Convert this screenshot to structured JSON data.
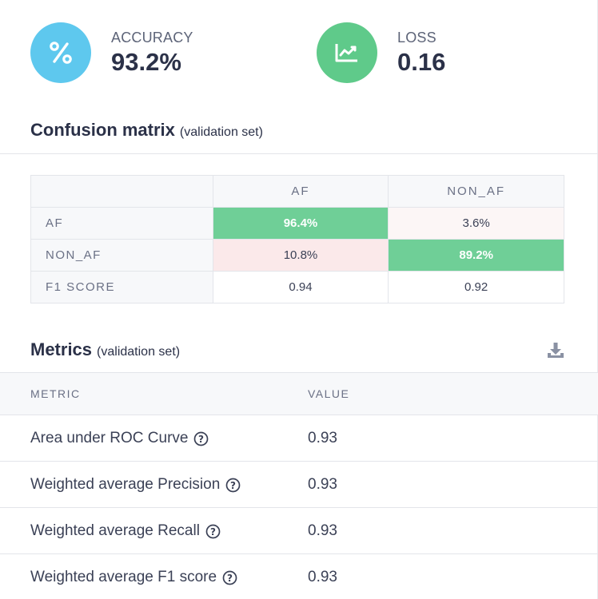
{
  "stats": {
    "accuracy": {
      "label": "ACCURACY",
      "value": "93.2%",
      "icon": "percent-icon",
      "color": "#5ec8ee"
    },
    "loss": {
      "label": "LOSS",
      "value": "0.16",
      "icon": "line-chart-icon",
      "color": "#5fca8a"
    }
  },
  "confusion": {
    "title": "Confusion matrix",
    "subtitle": "(validation set)",
    "columns": [
      "AF",
      "NON_AF"
    ],
    "rows": [
      {
        "label": "AF",
        "cells": [
          "96.4%",
          "3.6%"
        ]
      },
      {
        "label": "NON_AF",
        "cells": [
          "10.8%",
          "89.2%"
        ]
      },
      {
        "label": "F1 SCORE",
        "cells": [
          "0.94",
          "0.92"
        ]
      }
    ],
    "highlight_color": "#6fcf97"
  },
  "metrics": {
    "title": "Metrics",
    "subtitle": "(validation set)",
    "download_icon": "download-icon",
    "headers": {
      "metric": "METRIC",
      "value": "VALUE"
    },
    "rows": [
      {
        "name": "Area under ROC Curve",
        "value": "0.93"
      },
      {
        "name": "Weighted average Precision",
        "value": "0.93"
      },
      {
        "name": "Weighted average Recall",
        "value": "0.93"
      },
      {
        "name": "Weighted average F1 score",
        "value": "0.93"
      }
    ]
  }
}
